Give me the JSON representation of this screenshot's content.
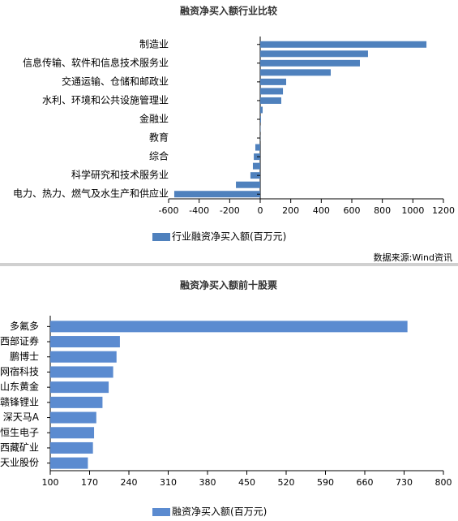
{
  "chart_data": [
    {
      "type": "bar",
      "orientation": "horizontal",
      "title": "融资净买入额行业比较",
      "categories": [
        "制造业",
        null,
        "信息传输、软件和信息技术服务业",
        null,
        "交通运输、仓储和邮政业",
        null,
        "水利、环境和公共设施管理业",
        null,
        "金融业",
        null,
        "教育",
        null,
        "综合",
        null,
        "科学研究和技术服务业",
        null,
        "电力、热力、燃气及水生产和供应业"
      ],
      "series": [
        {
          "name": "行业融资净买入额(百万元)",
          "color": "#4f81bd",
          "values": [
            1089,
            706,
            653,
            462,
            170,
            149,
            138,
            16,
            5,
            2,
            1,
            -32,
            -42,
            -48,
            -64,
            -159,
            -563
          ]
        }
      ],
      "xlim": [
        -600,
        1200
      ],
      "xticks": [
        -600,
        -400,
        -200,
        0,
        200,
        400,
        600,
        800,
        1000,
        1200
      ],
      "source": "数据来源:Wind资讯"
    },
    {
      "type": "bar",
      "orientation": "horizontal",
      "title": "融资净买入额前十股票",
      "categories": [
        "多氟多",
        "西部证券",
        "鹏博士",
        "网宿科技",
        "山东黄金",
        "赣锋锂业",
        "深天马A",
        "恒生电子",
        "西藏矿业",
        "天业股份"
      ],
      "series": [
        {
          "name": "融资净买入额(百万元)",
          "color": "#5b8bd0",
          "values": [
            736,
            224,
            218,
            212,
            204,
            193,
            182,
            178,
            176,
            167
          ]
        }
      ],
      "xlim": [
        100,
        800
      ],
      "xticks": [
        100,
        170,
        240,
        310,
        380,
        450,
        520,
        590,
        660,
        730,
        800
      ]
    }
  ]
}
